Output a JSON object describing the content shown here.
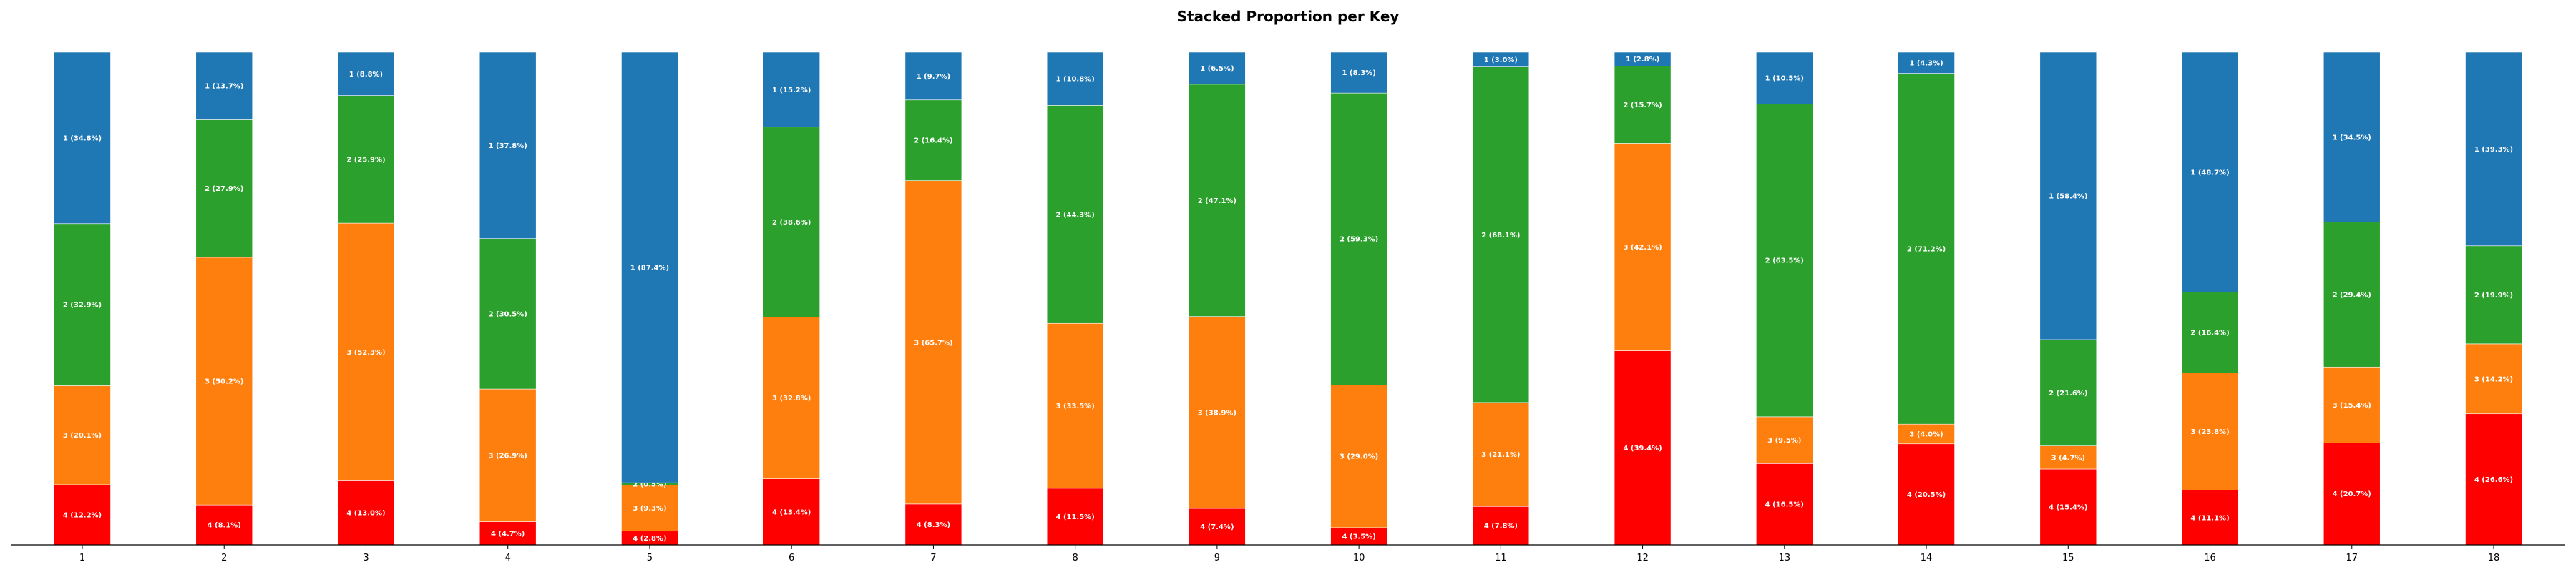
{
  "chart_data": {
    "type": "bar",
    "stacked": true,
    "normalized": true,
    "title": "Stacked Proportion per Key",
    "xlabel": "",
    "ylabel": "",
    "ylim": [
      0,
      1
    ],
    "grid": false,
    "legend": "none",
    "categories": [
      "1",
      "2",
      "3",
      "4",
      "5",
      "6",
      "7",
      "8",
      "9",
      "10",
      "11",
      "12",
      "13",
      "14",
      "15",
      "16",
      "17",
      "18"
    ],
    "series": [
      {
        "name": "4",
        "color": "#ff0000",
        "values": [
          12.2,
          8.1,
          13.0,
          4.7,
          2.8,
          13.4,
          8.3,
          11.5,
          7.4,
          3.5,
          7.8,
          39.4,
          16.5,
          20.5,
          15.4,
          11.1,
          20.7,
          26.6
        ]
      },
      {
        "name": "3",
        "color": "#ff7f0e",
        "values": [
          20.1,
          50.2,
          52.3,
          26.9,
          9.3,
          32.8,
          65.7,
          33.5,
          38.9,
          29.0,
          21.1,
          42.1,
          9.5,
          4.0,
          4.7,
          23.8,
          15.4,
          14.2
        ]
      },
      {
        "name": "2",
        "color": "#2ca02c",
        "values": [
          32.9,
          27.9,
          25.9,
          30.5,
          0.5,
          38.6,
          16.4,
          44.3,
          47.1,
          59.3,
          68.1,
          15.7,
          63.5,
          71.2,
          21.6,
          16.4,
          29.4,
          19.9
        ]
      },
      {
        "name": "1",
        "color": "#1f77b4",
        "values": [
          34.8,
          13.7,
          8.8,
          37.8,
          87.4,
          15.2,
          9.7,
          10.8,
          6.5,
          8.3,
          3.0,
          2.8,
          10.5,
          4.3,
          58.4,
          48.7,
          34.5,
          39.3
        ]
      }
    ]
  }
}
